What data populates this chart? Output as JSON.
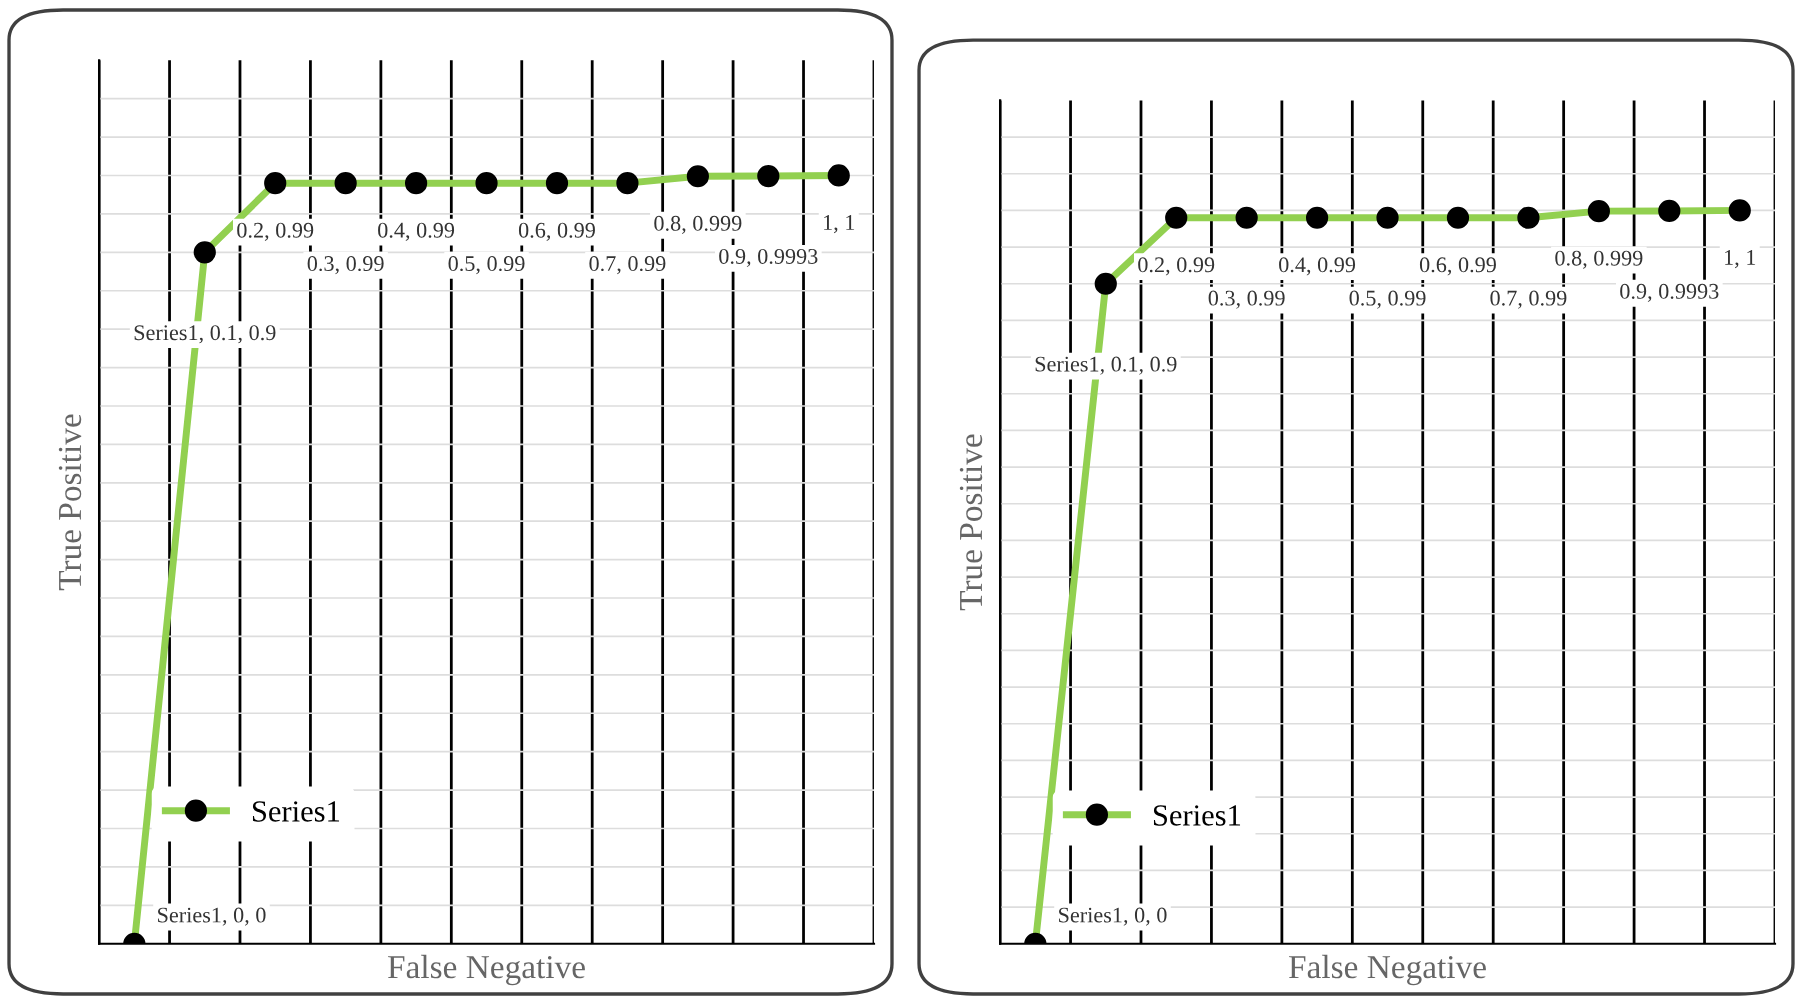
{
  "chart_data": [
    {
      "type": "line",
      "ylim": [
        0,
        1.15
      ],
      "xlabel": "False Negative",
      "ylabel": "True Positive",
      "categories": [
        null,
        null,
        null,
        null,
        null,
        null,
        null,
        null,
        null,
        null,
        null
      ],
      "series": [
        {
          "name": "Series1",
          "color": "#92d050",
          "values": [
            0,
            0.9,
            0.99,
            0.99,
            0.99,
            0.99,
            0.99,
            0.99,
            0.999,
            0.9993,
            1
          ],
          "value_labels": [
            "Series1, 0, 0",
            "Series1, 0.1, 0.9",
            "0.2, 0.99",
            "0.3, 0.99",
            "0.4, 0.99",
            "0.5, 0.99",
            "0.6, 0.99",
            "0.7, 0.99",
            "0.8, 0.999",
            "0.9, 0.9993",
            "1, 1"
          ]
        }
      ],
      "marker": "circle",
      "grid": true,
      "legend": "bottom left",
      "tick_labels": false
    },
    {
      "type": "line",
      "ylim": [
        0,
        1.15
      ],
      "xlabel": "False Negative",
      "ylabel": "True Positive",
      "categories": [
        null,
        null,
        null,
        null,
        null,
        null,
        null,
        null,
        null,
        null,
        null
      ],
      "series": [
        {
          "name": "Series1",
          "color": "#92d050",
          "values": [
            0,
            0.9,
            0.99,
            0.99,
            0.99,
            0.99,
            0.99,
            0.99,
            0.999,
            0.9993,
            1
          ],
          "value_labels": [
            "Series1, 0, 0",
            "Series1, 0.1, 0.9",
            "0.2, 0.99",
            "0.3, 0.99",
            "0.4, 0.99",
            "0.5, 0.99",
            "0.6, 0.99",
            "0.7, 0.99",
            "0.8, 0.999",
            "0.9, 0.9993",
            "1, 1"
          ]
        }
      ],
      "marker": "circle",
      "grid": true,
      "legend": "bottom left",
      "tick_labels": false
    }
  ]
}
